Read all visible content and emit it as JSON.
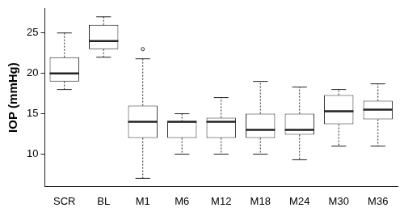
{
  "chart_data": {
    "type": "box",
    "y_label": "IOP (mmHg)",
    "categories": [
      "SCR",
      "BL",
      "M1",
      "M6",
      "M12",
      "M18",
      "M24",
      "M30",
      "M36"
    ],
    "min": [
      18,
      22,
      7,
      10,
      10,
      10,
      9.3,
      11,
      11
    ],
    "q1": [
      19,
      23,
      12,
      12,
      12,
      12,
      12.4,
      13.7,
      14.3
    ],
    "median": [
      20,
      24,
      14,
      14,
      14,
      13,
      13,
      15.3,
      15.5
    ],
    "q3": [
      22,
      26,
      16,
      14,
      14.5,
      15,
      15,
      17.3,
      16.6
    ],
    "max": [
      25,
      27,
      21.8,
      15,
      17,
      19,
      18.3,
      18,
      18.7
    ],
    "outliers": [
      [],
      [],
      [
        23
      ],
      [],
      [],
      [],
      [],
      [],
      []
    ],
    "color": "#222222",
    "ylim": [
      6,
      28
    ],
    "yticks": [
      10,
      15,
      20,
      25
    ],
    "grid": false
  }
}
